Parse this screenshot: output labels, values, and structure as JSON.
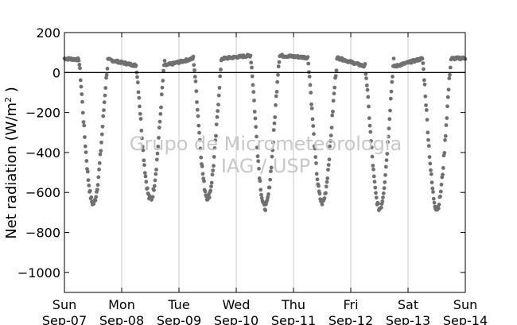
{
  "chart_data": {
    "type": "scatter",
    "title": "",
    "xlabel": "",
    "ylabel": "Net radiation (W/m",
    "ylabel_superscript": "2",
    "ylabel_suffix": " )",
    "ylim": [
      -1100,
      200
    ],
    "yticks": [
      200,
      0,
      -200,
      -400,
      -600,
      -800,
      -1000
    ],
    "ytick_labels": [
      "200",
      "0",
      "−200",
      "−400",
      "−600",
      "−800",
      "−1000"
    ],
    "xlim": [
      "2008-09-07",
      "2008-09-14"
    ],
    "xticks": [
      {
        "day": "Sun",
        "date": "Sep-07"
      },
      {
        "day": "Mon",
        "date": "Sep-08"
      },
      {
        "day": "Tue",
        "date": "Sep-09"
      },
      {
        "day": "Wed",
        "date": "Sep-10"
      },
      {
        "day": "Thu",
        "date": "Sep-11"
      },
      {
        "day": "Fri",
        "date": "Sep-12"
      },
      {
        "day": "Sat",
        "date": "Sep-13"
      },
      {
        "day": "Sun",
        "date": "Sep-14"
      }
    ],
    "grid": "vertical",
    "reference_line_y": 0,
    "marker_color": "#707070",
    "watermark": [
      "Grupo de Micrometeorologia",
      "IAG / USP"
    ],
    "days": [
      {
        "date": "Sep-07",
        "night": 65,
        "min": -655
      },
      {
        "date": "Sep-08",
        "night": 35,
        "min": -635
      },
      {
        "date": "Sep-09",
        "night": 70,
        "min": -625
      },
      {
        "date": "Sep-10",
        "night": 85,
        "min": -675
      },
      {
        "date": "Sep-11",
        "night": 75,
        "min": -650
      },
      {
        "date": "Sep-12",
        "night": 30,
        "min": -680
      },
      {
        "date": "Sep-13",
        "night": 70,
        "min": -680
      }
    ],
    "end_value": 75
  }
}
